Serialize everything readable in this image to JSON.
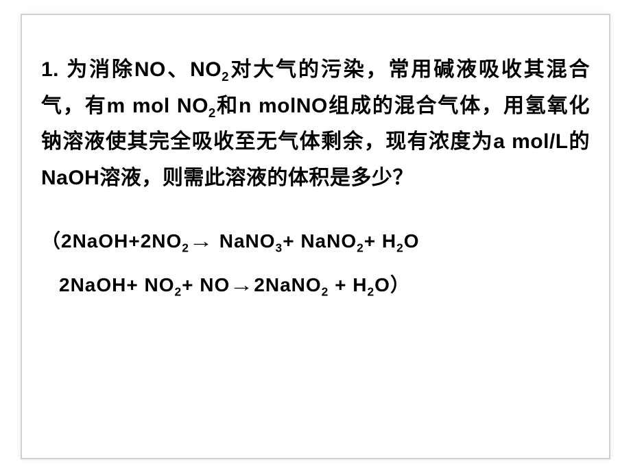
{
  "slide": {
    "background_color": "#ffffff",
    "border_color": "#d0d0d0",
    "text_color": "#000000",
    "font_family": "SimHei / Heiti",
    "body_font_size_pt": 22,
    "body_font_weight": "bold",
    "line_height": 1.75,
    "problem": {
      "number": "1.",
      "text_plain": "1. 为消除NO、NO₂对大气的污染，常用碱液吸收其混合气，有m mol NO₂和n molNO组成的混合气体，用氢氧化钠溶液使其完全吸收至无气体剩余，现有浓度为a mol/L的NaOH溶液，则需此溶液的体积是多少？",
      "segments": [
        {
          "t": "1. 为消除NO、NO"
        },
        {
          "sub": "2"
        },
        {
          "t": "对大气的污染，常用碱液吸收其混合气，有m mol NO"
        },
        {
          "sub": "2"
        },
        {
          "t": "和n molNO组成的混合气体，用氢氧化钠溶液使其完全吸收至无气体剩余，现有浓度为a mol/L的NaOH溶液，则需此溶液的体积是多少？"
        }
      ]
    },
    "equations": {
      "font_size_pt": 21,
      "arrow_glyph": "→",
      "eq1_plain": "（2NaOH+2NO₂ → NaNO₃+ NaNO₂+ H₂O",
      "eq1_segments": [
        {
          "t": "（2NaOH+2NO"
        },
        {
          "sub": "2"
        },
        {
          "arrow": true
        },
        {
          "t": " NaNO"
        },
        {
          "sub": "3"
        },
        {
          "t": "+ NaNO"
        },
        {
          "sub": "2"
        },
        {
          "t": "+ H"
        },
        {
          "sub": "2"
        },
        {
          "t": "O"
        }
      ],
      "eq2_plain": "2NaOH+ NO₂+ NO → 2NaNO₂ + H₂O）",
      "eq2_segments": [
        {
          "t": "2NaOH+ NO"
        },
        {
          "sub": "2"
        },
        {
          "t": "+ NO"
        },
        {
          "arrow": true
        },
        {
          "t": "2NaNO"
        },
        {
          "sub": "2"
        },
        {
          "t": " + H"
        },
        {
          "sub": "2"
        },
        {
          "t": "O）"
        }
      ]
    }
  }
}
